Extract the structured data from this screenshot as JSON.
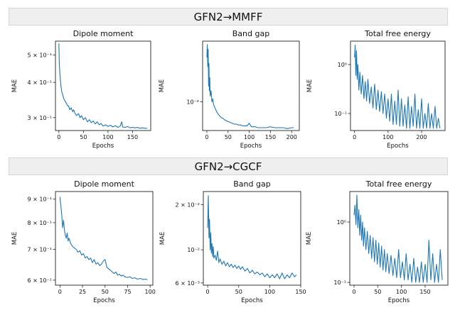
{
  "sections": [
    {
      "title": "GFN2→MMFF"
    },
    {
      "title": "GFN2→CGCF"
    }
  ],
  "chart_data": [
    {
      "type": "line",
      "section": "GFN2→MMFF",
      "title": "Dipole moment",
      "xlabel": "Epochs",
      "ylabel": "MAE",
      "yscale": "log",
      "xlim": [
        -7,
        187
      ],
      "ylim": [
        0.27,
        0.56
      ],
      "xticks": [
        0,
        50,
        100,
        150
      ],
      "xtick_labels": [
        "0",
        "50",
        "100",
        "150"
      ],
      "yticks": [
        0.5,
        0.4,
        0.3
      ],
      "ytick_labels": [
        "5 × 10⁻¹",
        "4 × 10⁻¹",
        "3 × 10⁻¹"
      ],
      "series": [
        {
          "name": "MAE",
          "color": "#1f77b4",
          "x": [
            0,
            1,
            2,
            3,
            4,
            5,
            6,
            7,
            8,
            10,
            12,
            14,
            16,
            18,
            20,
            22,
            25,
            28,
            30,
            33,
            36,
            40,
            43,
            46,
            50,
            54,
            58,
            62,
            66,
            70,
            74,
            78,
            82,
            86,
            90,
            95,
            100,
            105,
            110,
            115,
            120,
            125,
            128,
            130,
            135,
            140,
            145,
            150,
            155,
            160,
            165,
            170,
            175,
            180
          ],
          "y": [
            0.55,
            0.46,
            0.43,
            0.41,
            0.39,
            0.38,
            0.37,
            0.365,
            0.36,
            0.35,
            0.345,
            0.34,
            0.335,
            0.33,
            0.33,
            0.32,
            0.325,
            0.315,
            0.32,
            0.31,
            0.305,
            0.31,
            0.3,
            0.305,
            0.295,
            0.3,
            0.29,
            0.295,
            0.288,
            0.292,
            0.285,
            0.29,
            0.283,
            0.286,
            0.28,
            0.283,
            0.279,
            0.282,
            0.278,
            0.281,
            0.277,
            0.28,
            0.29,
            0.278,
            0.277,
            0.279,
            0.276,
            0.277,
            0.276,
            0.277,
            0.275,
            0.276,
            0.275,
            0.275
          ]
        }
      ]
    },
    {
      "type": "line",
      "section": "GFN2→MMFF",
      "title": "Band gap",
      "xlabel": "Epochs",
      "ylabel": "MAE",
      "yscale": "log",
      "xlim": [
        -10,
        218
      ],
      "ylim": [
        0.0062,
        0.0275
      ],
      "xticks": [
        0,
        50,
        100,
        150,
        200
      ],
      "xtick_labels": [
        "0",
        "50",
        "100",
        "150",
        "200"
      ],
      "yticks": [
        0.01
      ],
      "ytick_labels": [
        "10⁻²"
      ],
      "series": [
        {
          "name": "MAE",
          "color": "#1f77b4",
          "x": [
            0,
            1,
            2,
            3,
            4,
            5,
            6,
            7,
            8,
            10,
            12,
            14,
            16,
            18,
            20,
            23,
            26,
            30,
            34,
            38,
            42,
            46,
            50,
            55,
            60,
            65,
            70,
            75,
            80,
            85,
            90,
            95,
            100,
            105,
            110,
            115,
            120,
            130,
            140,
            150,
            160,
            170,
            180,
            190,
            200,
            205
          ],
          "y": [
            0.021,
            0.026,
            0.018,
            0.024,
            0.013,
            0.019,
            0.012,
            0.015,
            0.011,
            0.012,
            0.01,
            0.0105,
            0.0095,
            0.0092,
            0.0089,
            0.0085,
            0.0082,
            0.0079,
            0.0077,
            0.0076,
            0.0074,
            0.0073,
            0.0072,
            0.0071,
            0.007,
            0.0069,
            0.0069,
            0.0068,
            0.0068,
            0.0067,
            0.0067,
            0.0067,
            0.007,
            0.0066,
            0.0066,
            0.0066,
            0.0065,
            0.0065,
            0.0065,
            0.0066,
            0.0065,
            0.0065,
            0.0065,
            0.0064,
            0.0065,
            0.0065
          ]
        }
      ]
    },
    {
      "type": "line",
      "section": "GFN2→MMFF",
      "title": "Total free energy",
      "xlabel": "Epochs",
      "ylabel": "MAE",
      "yscale": "log",
      "xlim": [
        -12,
        270
      ],
      "ylim": [
        0.045,
        3.0
      ],
      "xticks": [
        0,
        100,
        200
      ],
      "xtick_labels": [
        "0",
        "100",
        "200"
      ],
      "yticks": [
        1.0,
        0.1
      ],
      "ytick_labels": [
        "10⁰",
        "10⁻¹"
      ],
      "series": [
        {
          "name": "MAE",
          "color": "#1f77b4",
          "x": [
            0,
            2,
            4,
            6,
            8,
            10,
            13,
            16,
            20,
            24,
            28,
            32,
            36,
            40,
            45,
            50,
            55,
            60,
            65,
            70,
            75,
            80,
            85,
            90,
            95,
            100,
            105,
            110,
            115,
            120,
            125,
            130,
            135,
            140,
            145,
            150,
            155,
            160,
            165,
            170,
            175,
            180,
            185,
            190,
            195,
            200,
            205,
            210,
            215,
            220,
            225,
            230,
            235,
            240,
            245,
            250,
            255
          ],
          "y": [
            1.4,
            2.5,
            0.6,
            1.9,
            0.5,
            1.0,
            0.3,
            0.7,
            0.25,
            0.6,
            0.2,
            0.45,
            0.18,
            0.5,
            0.16,
            0.35,
            0.13,
            0.4,
            0.12,
            0.3,
            0.11,
            0.28,
            0.1,
            0.25,
            0.08,
            0.2,
            0.07,
            0.25,
            0.06,
            0.18,
            0.06,
            0.3,
            0.055,
            0.2,
            0.055,
            0.15,
            0.05,
            0.22,
            0.05,
            0.14,
            0.055,
            0.25,
            0.05,
            0.12,
            0.05,
            0.2,
            0.05,
            0.1,
            0.05,
            0.16,
            0.05,
            0.1,
            0.05,
            0.14,
            0.05,
            0.08,
            0.05
          ]
        }
      ]
    },
    {
      "type": "line",
      "section": "GFN2→CGCF",
      "title": "Dipole moment",
      "xlabel": "Epochs",
      "ylabel": "MAE",
      "yscale": "log",
      "xlim": [
        -5,
        103
      ],
      "ylim": [
        0.585,
        0.935
      ],
      "xticks": [
        0,
        25,
        50,
        75,
        100
      ],
      "xtick_labels": [
        "0",
        "25",
        "50",
        "75",
        "100"
      ],
      "yticks": [
        0.9,
        0.8,
        0.7,
        0.6
      ],
      "ytick_labels": [
        "9 × 10⁻¹",
        "8 × 10⁻¹",
        "7 × 10⁻¹",
        "6 × 10⁻¹"
      ],
      "series": [
        {
          "name": "MAE",
          "color": "#1f77b4",
          "x": [
            0,
            1,
            2,
            3,
            4,
            5,
            6,
            7,
            8,
            9,
            10,
            12,
            14,
            16,
            18,
            20,
            22,
            24,
            26,
            28,
            30,
            32,
            34,
            36,
            38,
            40,
            42,
            44,
            46,
            48,
            50,
            52,
            54,
            56,
            58,
            60,
            62,
            64,
            66,
            68,
            70,
            72,
            75,
            78,
            80,
            83,
            86,
            89,
            92,
            95,
            97
          ],
          "y": [
            0.91,
            0.87,
            0.83,
            0.78,
            0.81,
            0.77,
            0.75,
            0.74,
            0.76,
            0.73,
            0.74,
            0.72,
            0.71,
            0.705,
            0.7,
            0.69,
            0.695,
            0.68,
            0.685,
            0.67,
            0.675,
            0.665,
            0.67,
            0.655,
            0.665,
            0.65,
            0.655,
            0.645,
            0.65,
            0.66,
            0.665,
            0.64,
            0.635,
            0.63,
            0.625,
            0.62,
            0.625,
            0.615,
            0.618,
            0.612,
            0.615,
            0.61,
            0.608,
            0.61,
            0.605,
            0.607,
            0.603,
            0.605,
            0.602,
            0.603,
            0.601
          ]
        }
      ]
    },
    {
      "type": "line",
      "section": "GFN2→CGCF",
      "title": "Band gap",
      "xlabel": "Epochs",
      "ylabel": "MAE",
      "yscale": "log",
      "xlim": [
        -7,
        150
      ],
      "ylim": [
        0.0058,
        0.0245
      ],
      "xticks": [
        0,
        50,
        100,
        150
      ],
      "xtick_labels": [
        "0",
        "50",
        "100",
        "150"
      ],
      "yticks": [
        0.02,
        0.01,
        0.006
      ],
      "ytick_labels": [
        "2 × 10⁻²",
        "10⁻²",
        "6 × 10⁻³"
      ],
      "series": [
        {
          "name": "MAE",
          "color": "#1f77b4",
          "x": [
            0,
            1,
            2,
            3,
            4,
            5,
            6,
            7,
            8,
            9,
            10,
            12,
            14,
            16,
            18,
            20,
            23,
            26,
            29,
            32,
            35,
            38,
            41,
            44,
            47,
            50,
            53,
            56,
            60,
            64,
            68,
            72,
            76,
            80,
            84,
            88,
            92,
            96,
            100,
            104,
            108,
            112,
            116,
            120,
            124,
            128,
            132,
            136,
            140,
            143
          ],
          "y": [
            0.014,
            0.023,
            0.012,
            0.016,
            0.01,
            0.013,
            0.0095,
            0.011,
            0.009,
            0.0105,
            0.0088,
            0.0092,
            0.0085,
            0.0098,
            0.0082,
            0.0087,
            0.008,
            0.0084,
            0.0078,
            0.0082,
            0.0077,
            0.008,
            0.0076,
            0.0079,
            0.0075,
            0.0078,
            0.0074,
            0.0077,
            0.0072,
            0.0075,
            0.007,
            0.0073,
            0.0069,
            0.0071,
            0.0068,
            0.007,
            0.0066,
            0.0069,
            0.0065,
            0.0068,
            0.0065,
            0.0069,
            0.0064,
            0.007,
            0.0064,
            0.0068,
            0.0065,
            0.007,
            0.0066,
            0.0068
          ]
        }
      ]
    },
    {
      "type": "line",
      "section": "GFN2→CGCF",
      "title": "Total free energy",
      "xlabel": "Epochs",
      "ylabel": "MAE",
      "yscale": "log",
      "xlim": [
        -9,
        198
      ],
      "ylim": [
        0.09,
        3.2
      ],
      "xticks": [
        0,
        50,
        100,
        150
      ],
      "xtick_labels": [
        "0",
        "50",
        "100",
        "150"
      ],
      "yticks": [
        1.0,
        0.1
      ],
      "ytick_labels": [
        "10⁰",
        "10⁻¹"
      ],
      "series": [
        {
          "name": "MAE",
          "color": "#1f77b4",
          "x": [
            0,
            2,
            4,
            6,
            8,
            10,
            12,
            14,
            16,
            18,
            20,
            22,
            25,
            28,
            31,
            34,
            37,
            40,
            43,
            46,
            49,
            52,
            55,
            58,
            61,
            64,
            67,
            70,
            74,
            78,
            82,
            86,
            90,
            94,
            98,
            102,
            106,
            110,
            114,
            118,
            122,
            126,
            130,
            134,
            138,
            142,
            146,
            150,
            154,
            158,
            162,
            166,
            170,
            174,
            178,
            182,
            186
          ],
          "y": [
            1.3,
            1.9,
            0.9,
            2.8,
            0.8,
            1.6,
            0.6,
            1.3,
            0.5,
            1.0,
            0.4,
            0.8,
            0.35,
            0.7,
            0.3,
            0.6,
            0.25,
            0.55,
            0.22,
            0.5,
            0.2,
            0.45,
            0.18,
            0.4,
            0.16,
            0.35,
            0.15,
            0.3,
            0.14,
            0.28,
            0.13,
            0.25,
            0.12,
            0.35,
            0.12,
            0.22,
            0.11,
            0.3,
            0.11,
            0.2,
            0.1,
            0.25,
            0.1,
            0.18,
            0.1,
            0.22,
            0.1,
            0.2,
            0.1,
            0.5,
            0.11,
            0.3,
            0.1,
            0.2,
            0.1,
            0.35,
            0.11
          ]
        }
      ]
    }
  ]
}
